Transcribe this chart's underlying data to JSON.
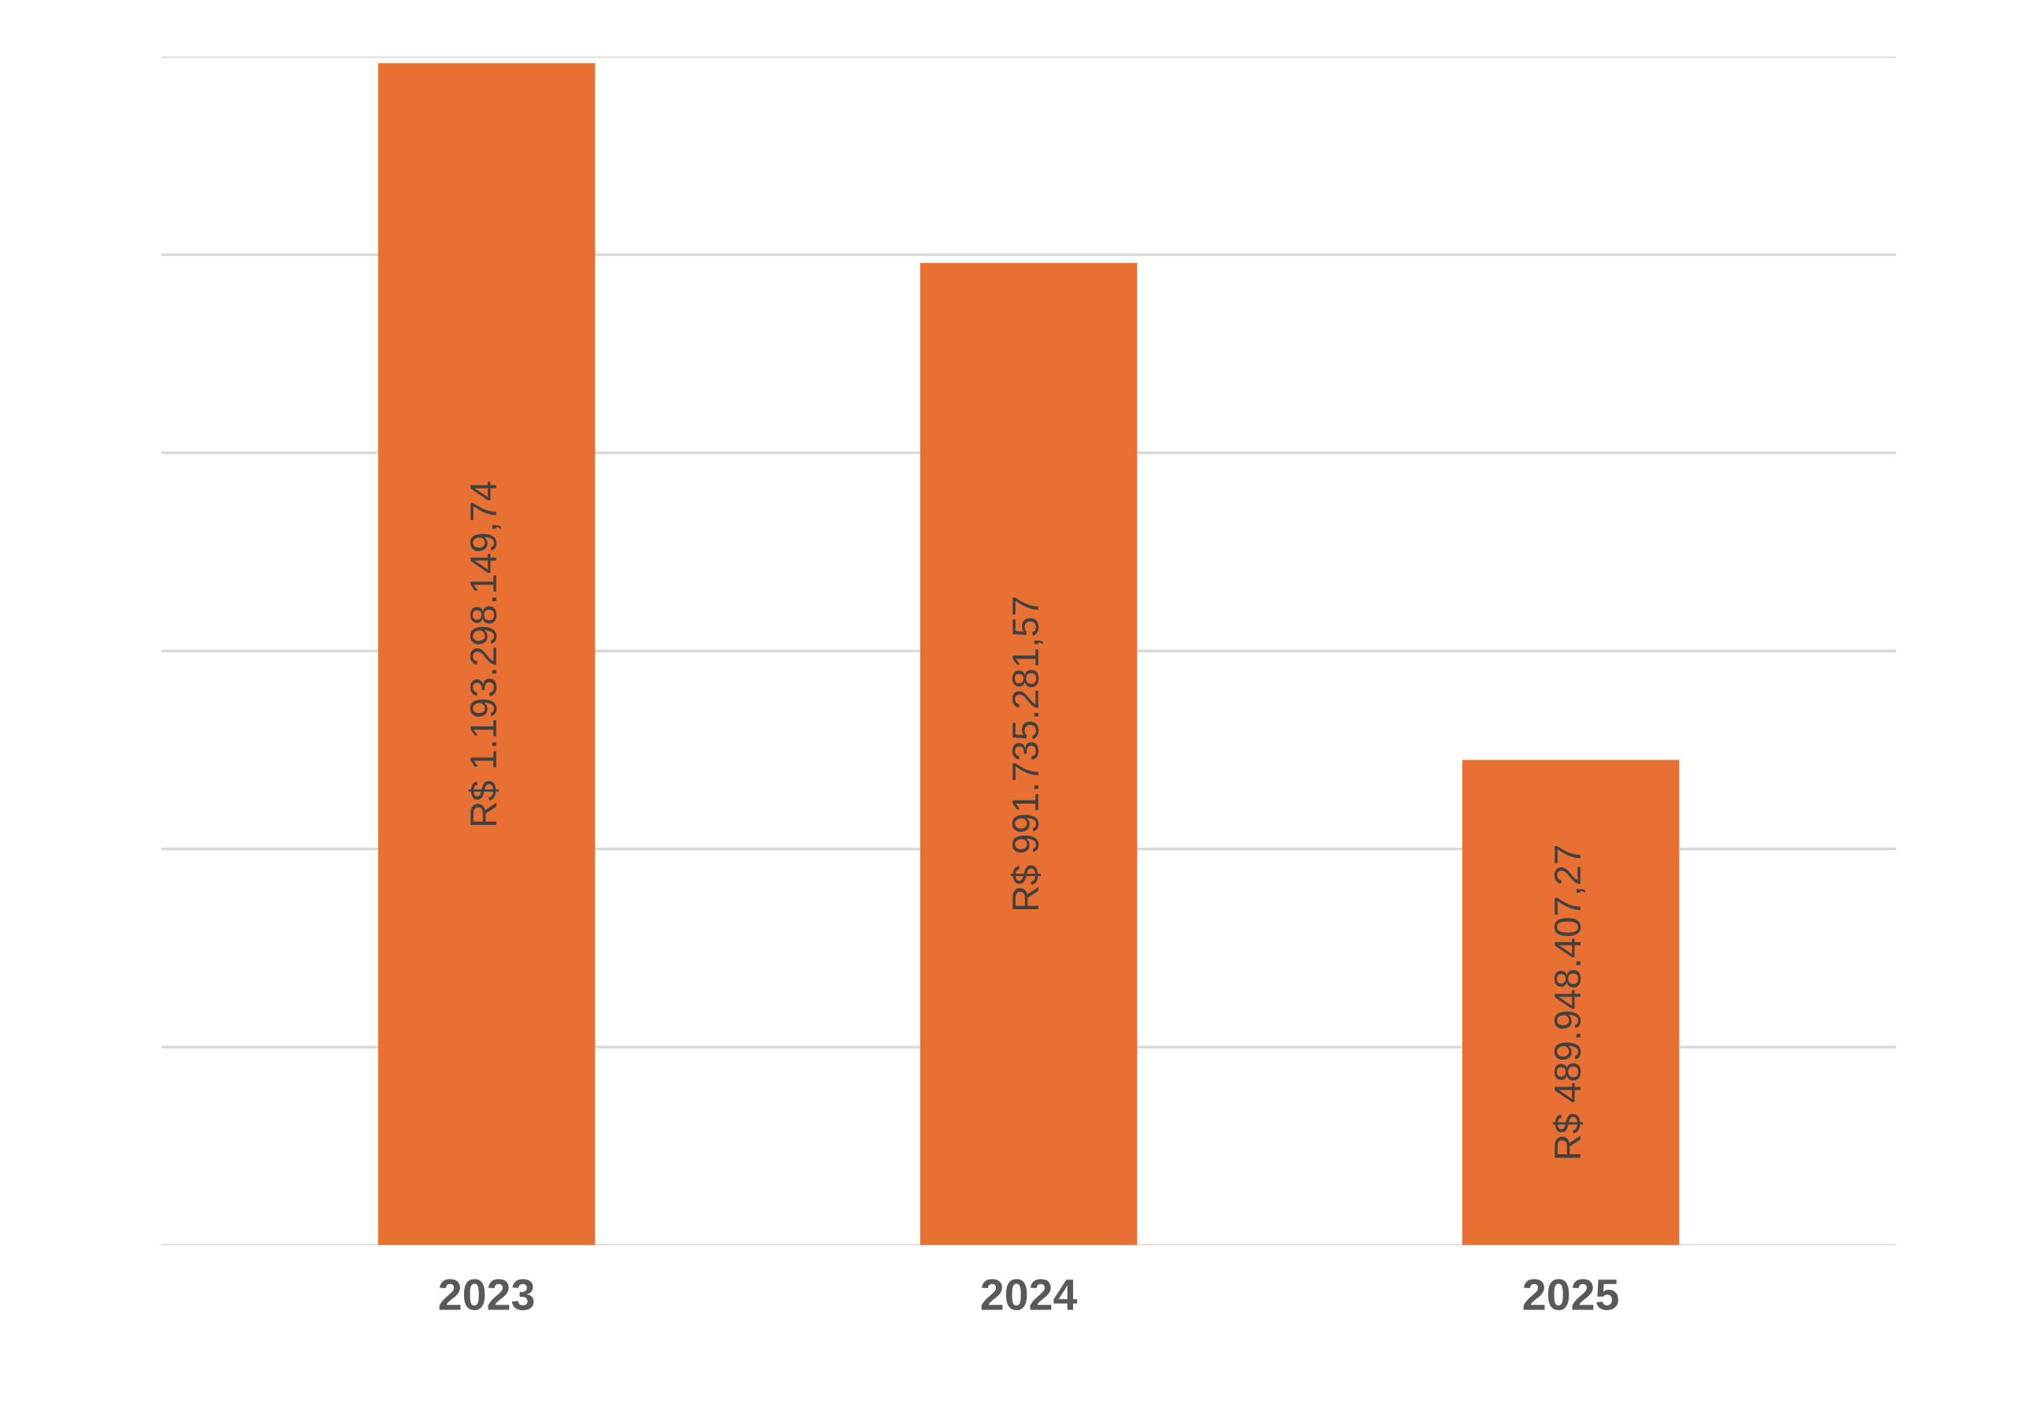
{
  "chart_data": {
    "type": "bar",
    "categories": [
      "2023",
      "2024",
      "2025"
    ],
    "values": [
      1193298149.74,
      991735281.57,
      489948407.27
    ],
    "value_labels": [
      "R$ 1.193.298.149,74",
      "R$ 991.735.281,57",
      "R$ 489.948.407,27"
    ],
    "color": "#e87033",
    "ylim": [
      0,
      1200000000
    ],
    "yticks": [
      {
        "value": 0,
        "label": null
      },
      {
        "value": 200000000,
        "label": null
      },
      {
        "value": 400000000,
        "label": null
      },
      {
        "value": 600000000,
        "label": null
      },
      {
        "value": 800000000,
        "label": null
      },
      {
        "value": 1000000000,
        "label": null
      },
      {
        "value": 1200000000,
        "label": null
      }
    ],
    "grid": "y",
    "tick_labels": "x"
  }
}
